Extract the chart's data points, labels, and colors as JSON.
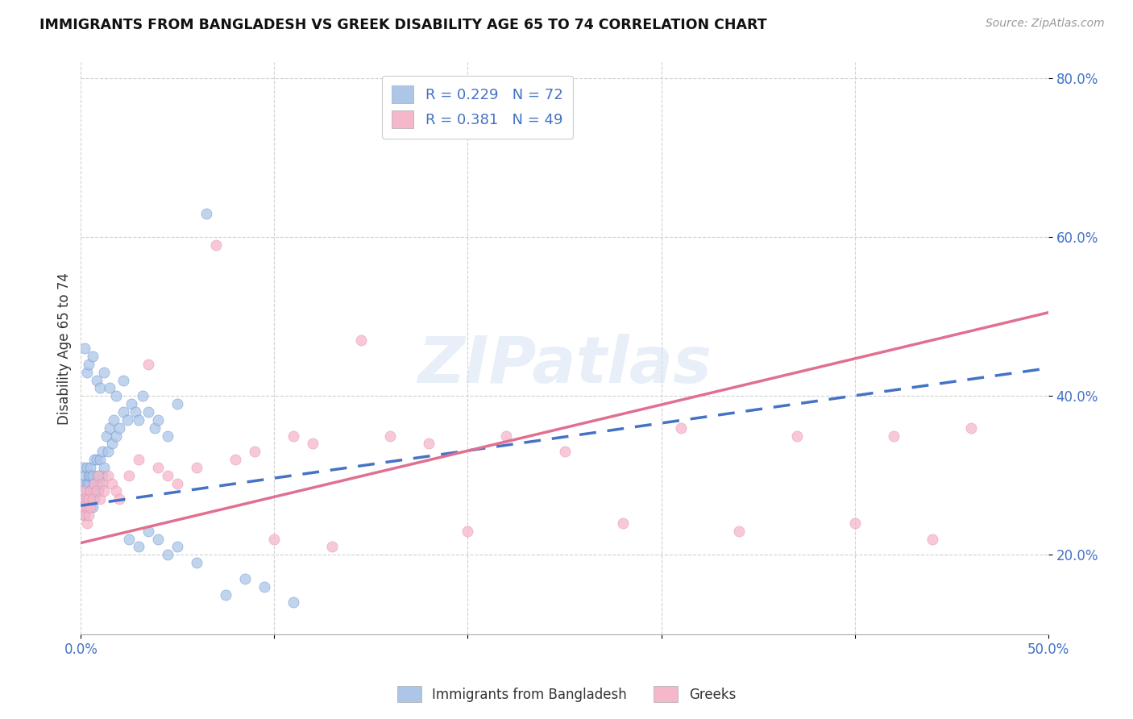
{
  "title": "IMMIGRANTS FROM BANGLADESH VS GREEK DISABILITY AGE 65 TO 74 CORRELATION CHART",
  "source": "Source: ZipAtlas.com",
  "ylabel": "Disability Age 65 to 74",
  "y_ticks": [
    0.2,
    0.4,
    0.6,
    0.8
  ],
  "y_tick_labels": [
    "20.0%",
    "40.0%",
    "60.0%",
    "80.0%"
  ],
  "x_ticks": [
    0.0,
    0.1,
    0.2,
    0.3,
    0.4,
    0.5
  ],
  "x_tick_labels": [
    "0.0%",
    "",
    "",
    "",
    "",
    "50.0%"
  ],
  "xlim": [
    0.0,
    0.5
  ],
  "ylim": [
    0.1,
    0.82
  ],
  "series1_color": "#adc6e8",
  "series2_color": "#f5b8cb",
  "line1_color": "#4472c4",
  "line2_color": "#e07090",
  "legend1_label": "R = 0.229   N = 72",
  "legend2_label": "R = 0.381   N = 49",
  "legend_color": "#4472c4",
  "watermark": "ZIPatlas",
  "line1_x": [
    0.0,
    0.5
  ],
  "line1_y": [
    0.262,
    0.435
  ],
  "line2_x": [
    0.0,
    0.5
  ],
  "line2_y": [
    0.215,
    0.505
  ],
  "bangladesh_x": [
    0.001,
    0.001,
    0.001,
    0.002,
    0.002,
    0.002,
    0.002,
    0.003,
    0.003,
    0.003,
    0.003,
    0.004,
    0.004,
    0.004,
    0.005,
    0.005,
    0.005,
    0.006,
    0.006,
    0.006,
    0.007,
    0.007,
    0.007,
    0.008,
    0.008,
    0.009,
    0.009,
    0.01,
    0.01,
    0.011,
    0.011,
    0.012,
    0.013,
    0.014,
    0.015,
    0.016,
    0.017,
    0.018,
    0.02,
    0.022,
    0.024,
    0.026,
    0.028,
    0.03,
    0.032,
    0.035,
    0.038,
    0.04,
    0.045,
    0.05,
    0.002,
    0.003,
    0.004,
    0.006,
    0.008,
    0.01,
    0.012,
    0.015,
    0.018,
    0.022,
    0.025,
    0.03,
    0.035,
    0.04,
    0.045,
    0.05,
    0.06,
    0.065,
    0.075,
    0.085,
    0.095,
    0.11
  ],
  "bangladesh_y": [
    0.27,
    0.29,
    0.31,
    0.25,
    0.27,
    0.28,
    0.3,
    0.26,
    0.27,
    0.29,
    0.31,
    0.27,
    0.29,
    0.3,
    0.28,
    0.3,
    0.31,
    0.26,
    0.28,
    0.3,
    0.27,
    0.29,
    0.32,
    0.29,
    0.32,
    0.28,
    0.3,
    0.29,
    0.32,
    0.3,
    0.33,
    0.31,
    0.35,
    0.33,
    0.36,
    0.34,
    0.37,
    0.35,
    0.36,
    0.38,
    0.37,
    0.39,
    0.38,
    0.37,
    0.4,
    0.38,
    0.36,
    0.37,
    0.35,
    0.39,
    0.46,
    0.43,
    0.44,
    0.45,
    0.42,
    0.41,
    0.43,
    0.41,
    0.4,
    0.42,
    0.22,
    0.21,
    0.23,
    0.22,
    0.2,
    0.21,
    0.19,
    0.63,
    0.15,
    0.17,
    0.16,
    0.14
  ],
  "greeks_x": [
    0.001,
    0.001,
    0.002,
    0.002,
    0.003,
    0.003,
    0.004,
    0.004,
    0.005,
    0.005,
    0.006,
    0.007,
    0.008,
    0.009,
    0.01,
    0.011,
    0.012,
    0.014,
    0.016,
    0.018,
    0.02,
    0.025,
    0.03,
    0.035,
    0.04,
    0.045,
    0.05,
    0.06,
    0.07,
    0.08,
    0.09,
    0.1,
    0.11,
    0.12,
    0.13,
    0.145,
    0.16,
    0.18,
    0.2,
    0.22,
    0.25,
    0.28,
    0.31,
    0.34,
    0.37,
    0.4,
    0.42,
    0.44,
    0.46
  ],
  "greeks_y": [
    0.26,
    0.28,
    0.25,
    0.27,
    0.24,
    0.26,
    0.25,
    0.27,
    0.26,
    0.28,
    0.27,
    0.29,
    0.28,
    0.3,
    0.27,
    0.29,
    0.28,
    0.3,
    0.29,
    0.28,
    0.27,
    0.3,
    0.32,
    0.44,
    0.31,
    0.3,
    0.29,
    0.31,
    0.59,
    0.32,
    0.33,
    0.22,
    0.35,
    0.34,
    0.21,
    0.47,
    0.35,
    0.34,
    0.23,
    0.35,
    0.33,
    0.24,
    0.36,
    0.23,
    0.35,
    0.24,
    0.35,
    0.22,
    0.36
  ]
}
